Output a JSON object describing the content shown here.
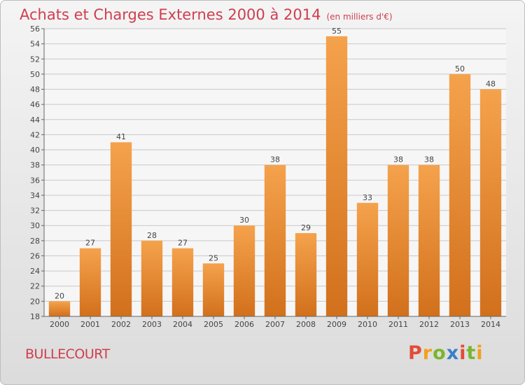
{
  "header": {
    "title": "Achats et Charges Externes 2000 à 2014",
    "subtitle": "(en milliers d'€)"
  },
  "footer": {
    "commune": "BULLECOURT",
    "logo": "Proxiti"
  },
  "colors": {
    "title": "#cf3e4e",
    "bar_top": "#f5a24c",
    "bar_bottom": "#d2701c",
    "grid": "#c8c8c8"
  },
  "chart_data": {
    "type": "bar",
    "categories": [
      "2000",
      "2001",
      "2002",
      "2003",
      "2004",
      "2005",
      "2006",
      "2007",
      "2008",
      "2009",
      "2010",
      "2011",
      "2012",
      "2013",
      "2014"
    ],
    "values": [
      20,
      27,
      41,
      28,
      27,
      25,
      30,
      38,
      29,
      55,
      33,
      38,
      38,
      50,
      48
    ],
    "ylim": [
      18,
      56
    ],
    "yticks": [
      18,
      20,
      22,
      24,
      26,
      28,
      30,
      32,
      34,
      36,
      38,
      40,
      42,
      44,
      46,
      48,
      50,
      52,
      54,
      56
    ],
    "grid": true,
    "data_labels": true
  }
}
